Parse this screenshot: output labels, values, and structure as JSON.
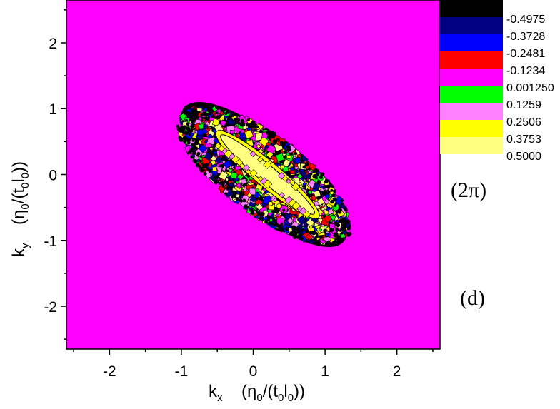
{
  "chart_data": {
    "type": "heatmap",
    "title": "",
    "xlabel_main": "k",
    "xlabel_sub": "x",
    "xlabel_unit": "(η0/(t0l0))",
    "ylabel_main": "k",
    "ylabel_sub": "y",
    "ylabel_unit": "(η0/(t0l0))",
    "xlim": [
      -2.6,
      2.6
    ],
    "ylim": [
      -2.65,
      2.65
    ],
    "xticks": [
      -2,
      -1,
      0,
      1,
      2
    ],
    "yticks": [
      -2,
      -1,
      0,
      1,
      2
    ],
    "xtick_labels": [
      "-2",
      "-1",
      "0",
      "1",
      "2"
    ],
    "ytick_labels": [
      "-2",
      "-1",
      "0",
      "1",
      "2"
    ],
    "background_value": -0.1234,
    "region": {
      "shape": "ellipse",
      "center": [
        0.15,
        0.0
      ],
      "semi_major": 1.45,
      "semi_minor": 0.55,
      "angle_deg": -40
    },
    "core": {
      "shape": "ellipse",
      "center": [
        0.2,
        0.0
      ],
      "semi_major": 0.85,
      "semi_minor": 0.13,
      "angle_deg": -40,
      "value": 0.5
    },
    "colorbar": {
      "levels": [
        {
          "value": "",
          "color": "#000000"
        },
        {
          "value": "-0.4975",
          "color": "#000080"
        },
        {
          "value": "-0.3728",
          "color": "#0000ff"
        },
        {
          "value": "-0.2481",
          "color": "#ff0000"
        },
        {
          "value": "-0.1234",
          "color": "#ff00ff"
        },
        {
          "value": "0.001250",
          "color": "#00ff00"
        },
        {
          "value": "0.1259",
          "color": "#ff80ff"
        },
        {
          "value": "0.2506",
          "color": "#ffff00"
        },
        {
          "value": "0.3753",
          "color": "#ffff80"
        },
        {
          "value": "0.5000",
          "color": ""
        }
      ]
    },
    "annotations": [
      "(2π)",
      "(d)"
    ],
    "grid": false,
    "legend_placement": "right"
  }
}
